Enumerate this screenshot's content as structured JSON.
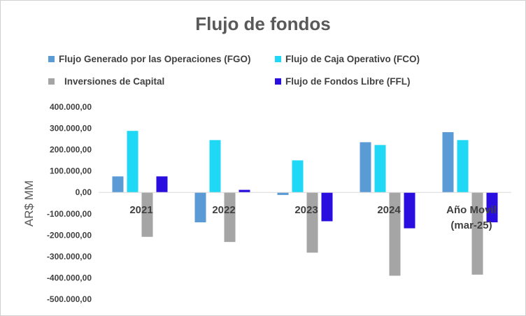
{
  "chart_data": {
    "type": "bar",
    "title": "Flujo de fondos",
    "ylabel": "AR$ MM",
    "xlabel": "",
    "ylim": [
      -500000,
      400000
    ],
    "ytick_step": 100000,
    "ytick_labels": [
      "400.000,00",
      "300.000,00",
      "200.000,00",
      "100.000,00",
      "0,00",
      "-100.000,00",
      "-200.000,00",
      "-300.000,00",
      "-400.000,00",
      "-500.000,00"
    ],
    "categories": [
      "2021",
      "2022",
      "2023",
      "2024",
      "Año Movil (mar-25)"
    ],
    "category_lines": [
      [
        "2021"
      ],
      [
        "2022"
      ],
      [
        "2023"
      ],
      [
        "2024"
      ],
      [
        "Año Movil",
        "(mar-25)"
      ]
    ],
    "legend_position": "top",
    "grid": false,
    "series": [
      {
        "name": "Flujo Generado por las Operaciones (FGO)",
        "color": "#5b9bd5",
        "values": [
          75000,
          -140000,
          -12000,
          235000,
          282000
        ]
      },
      {
        "name": "Flujo de Caja Operativo (FCO)",
        "color": "#1fd8f5",
        "values": [
          288000,
          245000,
          150000,
          222000,
          245000
        ]
      },
      {
        "name": "Inversiones de Capital",
        "color": "#a5a5a5",
        "values": [
          -208000,
          -232000,
          -282000,
          -390000,
          -385000
        ]
      },
      {
        "name": "Flujo de Fondos Libre (FFL)",
        "color": "#2a0ee0",
        "values": [
          75000,
          12000,
          -135000,
          -168000,
          -140000
        ]
      }
    ]
  }
}
